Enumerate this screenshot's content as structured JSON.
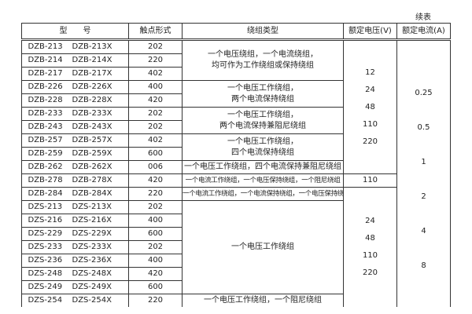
{
  "continued_label": "续表",
  "headers": [
    "型　　号",
    "触点形式",
    "绕组类型",
    "额定电压(V)",
    "额定电流(A)"
  ],
  "rows": [
    [
      "DZB-213",
      "DZB-213X",
      "202"
    ],
    [
      "DZB-214",
      "DZB-214X",
      "220"
    ],
    [
      "DZB-217",
      "DZB-217X",
      "402"
    ],
    [
      "DZB-226",
      "DZB-226X",
      "400"
    ],
    [
      "DZB-228",
      "DZB-228X",
      "420"
    ],
    [
      "DZB-233",
      "DZB-233X",
      "202"
    ],
    [
      "DZB-243",
      "DZB-243X",
      "202"
    ],
    [
      "DZB-257",
      "DZB-257X",
      "402"
    ],
    [
      "DZB-259",
      "DZB-259X",
      "600"
    ],
    [
      "DZB-262",
      "DZB-262X",
      "006"
    ],
    [
      "DZB-278",
      "DZB-278X",
      "420"
    ],
    [
      "DZB-284",
      "DZB-284X",
      "220"
    ],
    [
      "DZS-213",
      "DZS-213X",
      "202"
    ],
    [
      "DZS-216",
      "DZS-216X",
      "400"
    ],
    [
      "DZS-229",
      "DZS-229X",
      "600"
    ],
    [
      "DZS-233",
      "DZS-233X",
      "202"
    ],
    [
      "DZS-236",
      "DZS-236X",
      "400"
    ],
    [
      "DZS-248",
      "DZS-248X",
      "420"
    ],
    [
      "DZS-249",
      "DZS-249X",
      "600"
    ],
    [
      "DZS-254",
      "DZS-254X",
      "220"
    ]
  ],
  "windings": [
    [
      "一个电压绕组，一个电流绕组，",
      "均可作为工作绕组或保持绕组"
    ],
    [
      "一个电压工作绕组，",
      "两个电流保持绕组"
    ],
    [
      "一个电压工作绕组，",
      "两个电流保持兼阻尼绕组"
    ],
    [
      "一个电压工作绕组，",
      "四个电流保持绕组"
    ],
    [
      "一个电压工作绕组，四个电流保持兼阻尼绕组"
    ],
    [
      "一个电流工作绕组，一个电压保持绕组，一个阻尼绕组"
    ],
    [
      "一个电流工作绕组，一个电流保持绕组，一个电压保持绕组"
    ],
    [
      "一个电压工作绕组"
    ],
    [
      "一个电压工作绕组，一个阻尼绕组"
    ]
  ],
  "voltages": [
    [
      "12",
      "24",
      "48",
      "110",
      "220"
    ],
    [
      "110"
    ],
    [
      "24",
      "48",
      "110",
      "220"
    ]
  ],
  "currents": [
    "0.25",
    "0.5",
    "1",
    "2",
    "4",
    "8"
  ]
}
